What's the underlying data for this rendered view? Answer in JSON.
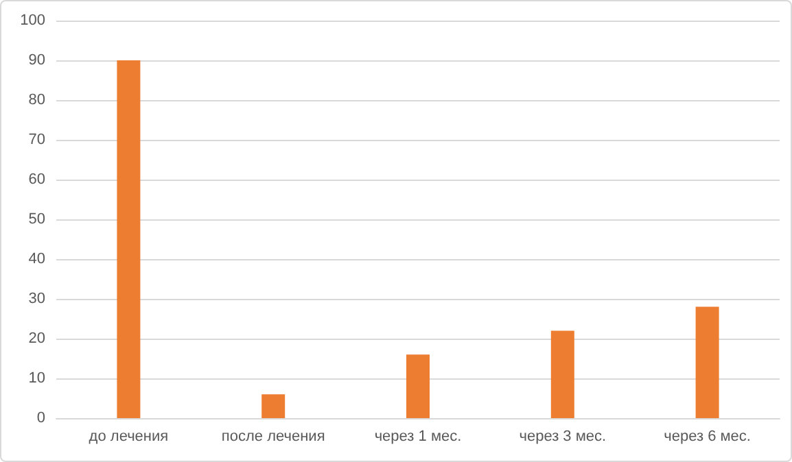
{
  "chart_data": {
    "type": "bar",
    "categories": [
      "до лечения",
      "после лечения",
      "через 1 мес.",
      "через 3 мес.",
      "через 6 мес."
    ],
    "values": [
      90,
      6,
      16,
      22,
      28
    ],
    "color": "#ed7d31",
    "ylim": [
      0,
      100
    ],
    "yticks": [
      0,
      10,
      20,
      30,
      40,
      50,
      60,
      70,
      80,
      90,
      100
    ],
    "grid": "y"
  }
}
